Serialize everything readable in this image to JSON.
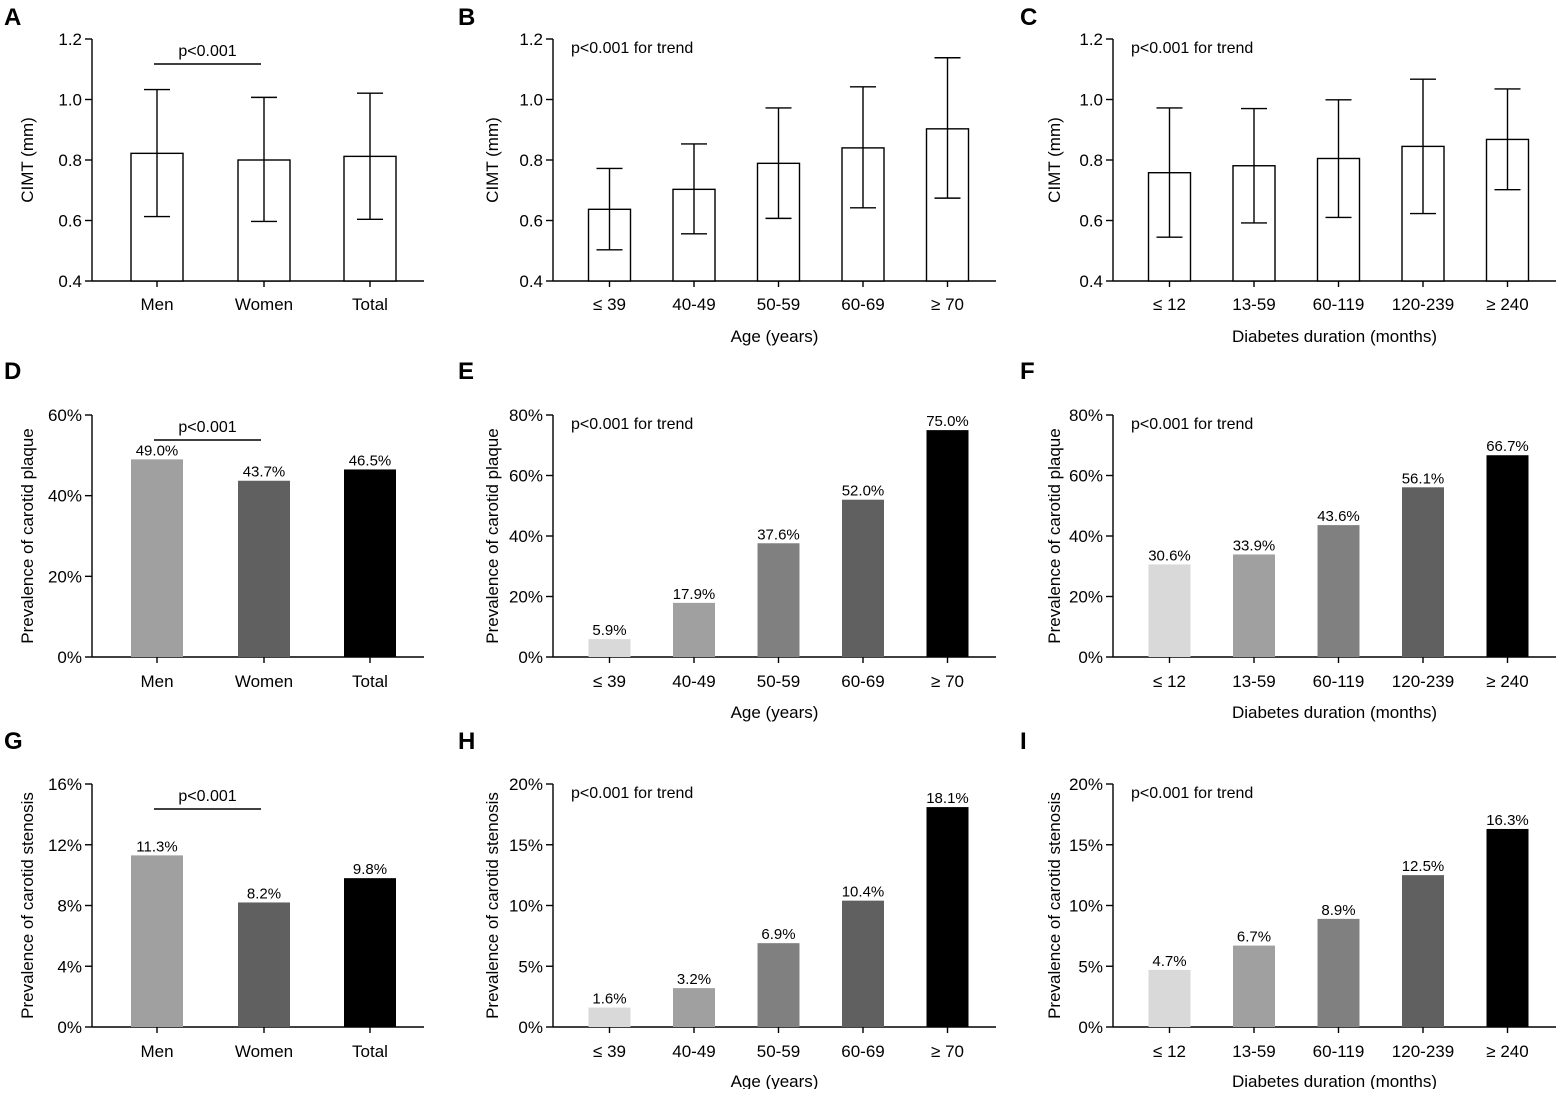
{
  "colors": {
    "axis": "#000000",
    "open_fill": "#ffffff",
    "shades": [
      "#d9d9d9",
      "#a0a0a0",
      "#808080",
      "#606060",
      "#000000"
    ]
  },
  "chart_data": [
    {
      "panel": "A",
      "type": "bar",
      "style": "open-errorbar",
      "categories": [
        "Men",
        "Women",
        "Total"
      ],
      "values": [
        0.822,
        0.8,
        0.812
      ],
      "errors": [
        [
          0.613,
          1.033
        ],
        [
          0.597,
          1.007
        ],
        [
          0.604,
          1.021
        ]
      ],
      "ylabel": "CIMT (mm)",
      "xlabel": "",
      "ylim": [
        0.4,
        1.2
      ],
      "yticks": [
        0.4,
        0.6,
        0.8,
        1.0,
        1.2
      ],
      "ytick_labels": [
        "0.4",
        "0.6",
        "0.8",
        "1.0",
        "1.2"
      ],
      "annotation": "p<0.001",
      "bracket": [
        0,
        1
      ],
      "grid": false
    },
    {
      "panel": "B",
      "type": "bar",
      "style": "open-errorbar",
      "categories": [
        "≤ 39",
        "40-49",
        "50-59",
        "60-69",
        "≥ 70"
      ],
      "values": [
        0.637,
        0.703,
        0.789,
        0.84,
        0.903
      ],
      "errors": [
        [
          0.503,
          0.772
        ],
        [
          0.556,
          0.853
        ],
        [
          0.607,
          0.972
        ],
        [
          0.642,
          1.042
        ],
        [
          0.674,
          1.138
        ]
      ],
      "ylabel": "CIMT (mm)",
      "xlabel": "Age (years)",
      "ylim": [
        0.4,
        1.2
      ],
      "yticks": [
        0.4,
        0.6,
        0.8,
        1.0,
        1.2
      ],
      "ytick_labels": [
        "0.4",
        "0.6",
        "0.8",
        "1.0",
        "1.2"
      ],
      "annotation": "p<0.001 for trend",
      "grid": false
    },
    {
      "panel": "C",
      "type": "bar",
      "style": "open-errorbar",
      "categories": [
        "≤ 12",
        "13-59",
        "60-119",
        "120-239",
        "≥ 240"
      ],
      "values": [
        0.758,
        0.781,
        0.805,
        0.845,
        0.868
      ],
      "errors": [
        [
          0.545,
          0.972
        ],
        [
          0.592,
          0.97
        ],
        [
          0.61,
          0.999
        ],
        [
          0.623,
          1.067
        ],
        [
          0.702,
          1.035
        ]
      ],
      "ylabel": "CIMT (mm)",
      "xlabel": "Diabetes duration (months)",
      "ylim": [
        0.4,
        1.2
      ],
      "yticks": [
        0.4,
        0.6,
        0.8,
        1.0,
        1.2
      ],
      "ytick_labels": [
        "0.4",
        "0.6",
        "0.8",
        "1.0",
        "1.2"
      ],
      "annotation": "p<0.001 for trend",
      "grid": false
    },
    {
      "panel": "D",
      "type": "bar",
      "categories": [
        "Men",
        "Women",
        "Total"
      ],
      "values": [
        49.0,
        43.7,
        46.5
      ],
      "data_labels": [
        "49.0%",
        "43.7%",
        "46.5%"
      ],
      "ylabel": "Prevalence of carotid plaque",
      "xlabel": "",
      "ylim": [
        0,
        60
      ],
      "yticks": [
        0,
        20,
        40,
        60
      ],
      "ytick_labels": [
        "0%",
        "20%",
        "40%",
        "60%"
      ],
      "annotation": "p<0.001",
      "bracket": [
        0,
        1
      ],
      "grid": false
    },
    {
      "panel": "E",
      "type": "bar",
      "categories": [
        "≤ 39",
        "40-49",
        "50-59",
        "60-69",
        "≥ 70"
      ],
      "values": [
        5.9,
        17.9,
        37.6,
        52.0,
        75.0
      ],
      "data_labels": [
        "5.9%",
        "17.9%",
        "37.6%",
        "52.0%",
        "75.0%"
      ],
      "ylabel": "Prevalence of  carotid plaque",
      "xlabel": "Age (years)",
      "ylim": [
        0,
        80
      ],
      "yticks": [
        0,
        20,
        40,
        60,
        80
      ],
      "ytick_labels": [
        "0%",
        "20%",
        "40%",
        "60%",
        "80%"
      ],
      "annotation": "p<0.001 for trend",
      "grid": false
    },
    {
      "panel": "F",
      "type": "bar",
      "categories": [
        "≤ 12",
        "13-59",
        "60-119",
        "120-239",
        "≥ 240"
      ],
      "values": [
        30.6,
        33.9,
        43.6,
        56.1,
        66.7
      ],
      "data_labels": [
        "30.6%",
        "33.9%",
        "43.6%",
        "56.1%",
        "66.7%"
      ],
      "ylabel": "Prevalence of  carotid plaque",
      "xlabel": "Diabetes duration (months)",
      "ylim": [
        0,
        80
      ],
      "yticks": [
        0,
        20,
        40,
        60,
        80
      ],
      "ytick_labels": [
        "0%",
        "20%",
        "40%",
        "60%",
        "80%"
      ],
      "annotation": "p<0.001 for trend",
      "grid": false
    },
    {
      "panel": "G",
      "type": "bar",
      "categories": [
        "Men",
        "Women",
        "Total"
      ],
      "values": [
        11.3,
        8.2,
        9.8
      ],
      "data_labels": [
        "11.3%",
        "8.2%",
        "9.8%"
      ],
      "ylabel": "Prevalence of carotid stenosis",
      "xlabel": "",
      "ylim": [
        0,
        16
      ],
      "yticks": [
        0,
        4,
        8,
        12,
        16
      ],
      "ytick_labels": [
        "0%",
        "4%",
        "8%",
        "12%",
        "16%"
      ],
      "annotation": "p<0.001",
      "bracket": [
        0,
        1
      ],
      "grid": false
    },
    {
      "panel": "H",
      "type": "bar",
      "categories": [
        "≤ 39",
        "40-49",
        "50-59",
        "60-69",
        "≥ 70"
      ],
      "values": [
        1.6,
        3.2,
        6.9,
        10.4,
        18.1
      ],
      "data_labels": [
        "1.6%",
        "3.2%",
        "6.9%",
        "10.4%",
        "18.1%"
      ],
      "ylabel": "Prevalence of  carotid stenosis",
      "xlabel": "Age (years)",
      "ylim": [
        0,
        20
      ],
      "yticks": [
        0,
        5,
        10,
        15,
        20
      ],
      "ytick_labels": [
        "0%",
        "5%",
        "10%",
        "15%",
        "20%"
      ],
      "annotation": "p<0.001 for trend",
      "grid": false
    },
    {
      "panel": "I",
      "type": "bar",
      "categories": [
        "≤ 12",
        "13-59",
        "60-119",
        "120-239",
        "≥ 240"
      ],
      "values": [
        4.7,
        6.7,
        8.9,
        12.5,
        16.3
      ],
      "data_labels": [
        "4.7%",
        "6.7%",
        "8.9%",
        "12.5%",
        "16.3%"
      ],
      "ylabel": "Prevalence of  carotid stenosis",
      "xlabel": "Diabetes duration (months)",
      "ylim": [
        0,
        20
      ],
      "yticks": [
        0,
        5,
        10,
        15,
        20
      ],
      "ytick_labels": [
        "0%",
        "5%",
        "10%",
        "15%",
        "20%"
      ],
      "annotation": "p<0.001 for trend",
      "grid": false
    }
  ]
}
